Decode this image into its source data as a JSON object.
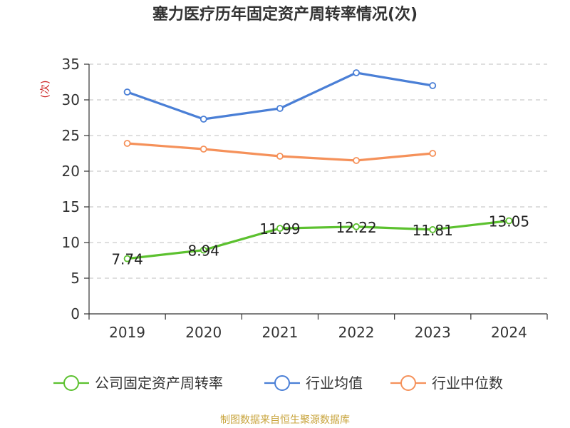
{
  "chart_data": {
    "type": "line",
    "title": "塞力医疗历年固定资产周转率情况(次)",
    "ylabel": "(次)",
    "xlabel": "",
    "categories": [
      "2019",
      "2020",
      "2021",
      "2022",
      "2023",
      "2024"
    ],
    "yticks": [
      "0",
      "5",
      "10",
      "15",
      "20",
      "25",
      "30",
      "35"
    ],
    "ylim": [
      0,
      35
    ],
    "grid": true,
    "legend_position": "bottom",
    "series": [
      {
        "name": "公司固定资产周转率",
        "color": "#5cc12f",
        "values": [
          7.74,
          8.94,
          11.99,
          12.22,
          11.81,
          13.05
        ],
        "labels": [
          "7.74",
          "8.94",
          "11.99",
          "12.22",
          "11.81",
          "13.05"
        ]
      },
      {
        "name": "行业均值",
        "color": "#4a7fd6",
        "values": [
          31.1,
          27.3,
          28.8,
          33.8,
          32.0,
          null
        ]
      },
      {
        "name": "行业中位数",
        "color": "#f5915a",
        "values": [
          23.9,
          23.1,
          22.1,
          21.5,
          22.5,
          null
        ]
      }
    ]
  },
  "source": "制图数据来自恒生聚源数据库",
  "ylabel_color": "#cc2222"
}
